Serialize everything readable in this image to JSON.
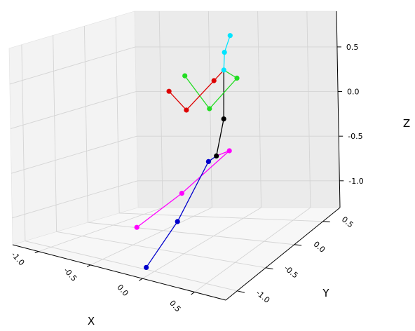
{
  "chart_data": {
    "type": "scatter3d",
    "title": "",
    "xlabel": "X",
    "ylabel": "Y",
    "zlabel": "Z",
    "x_ticks": [
      "-1.0",
      "-0.5",
      "0.0",
      "0.5"
    ],
    "y_ticks": [
      "-1.0",
      "-0.5",
      "0.0",
      "0.5"
    ],
    "z_ticks": [
      "-1.0",
      "-0.5",
      "0.0",
      "0.5"
    ],
    "xlim": [
      -1.25,
      0.8
    ],
    "ylim": [
      -1.2,
      0.8
    ],
    "zlim": [
      -1.3,
      0.9
    ],
    "grid": true,
    "legend": "none",
    "joints": {
      "head_top": {
        "x": 0.05,
        "y": 0.25,
        "z": 0.85
      },
      "head": {
        "x": 0.02,
        "y": 0.2,
        "z": 0.68
      },
      "neck": {
        "x": 0.1,
        "y": 0.05,
        "z": 0.55
      },
      "spine": {
        "x": 0.15,
        "y": -0.05,
        "z": 0.05
      },
      "pelvis": {
        "x": 0.1,
        "y": -0.1,
        "z": -0.35
      },
      "l_hip": {
        "x": 0.2,
        "y": -0.05,
        "z": -0.3
      },
      "l_knee": {
        "x": -0.1,
        "y": -0.35,
        "z": -0.7
      },
      "l_foot": {
        "x": -0.4,
        "y": -0.6,
        "z": -1.05
      },
      "r_hip": {
        "x": 0.05,
        "y": -0.15,
        "z": -0.4
      },
      "r_knee": {
        "x": 0.0,
        "y": -0.6,
        "z": -0.9
      },
      "r_foot": {
        "x": -0.05,
        "y": -1.05,
        "z": -1.25
      },
      "l_shoulder": {
        "x": 0.2,
        "y": 0.1,
        "z": 0.45
      },
      "l_elbow": {
        "x": -0.05,
        "y": 0.05,
        "z": 0.1
      },
      "l_wrist": {
        "x": -0.35,
        "y": 0.15,
        "z": 0.4
      },
      "r_shoulder": {
        "x": 0.0,
        "y": 0.05,
        "z": 0.42
      },
      "r_elbow": {
        "x": -0.25,
        "y": 0.0,
        "z": 0.08
      },
      "r_wrist": {
        "x": -0.45,
        "y": 0.05,
        "z": 0.25
      }
    },
    "series": [
      {
        "color": "#00e5ff",
        "points": [
          "head_top",
          "head",
          "neck"
        ]
      },
      {
        "color": "#000000",
        "points": [
          "neck",
          "spine",
          "pelvis"
        ]
      },
      {
        "color": "#22dd22",
        "points": [
          "neck",
          "l_shoulder",
          "l_elbow",
          "l_wrist"
        ]
      },
      {
        "color": "#dd0000",
        "points": [
          "neck",
          "r_shoulder",
          "r_elbow",
          "r_wrist"
        ]
      },
      {
        "color": "#ff00ff",
        "points": [
          "pelvis",
          "l_hip",
          "l_knee",
          "l_foot"
        ]
      },
      {
        "color": "#0000cc",
        "points": [
          "pelvis",
          "r_hip",
          "r_knee",
          "r_foot"
        ]
      }
    ]
  }
}
